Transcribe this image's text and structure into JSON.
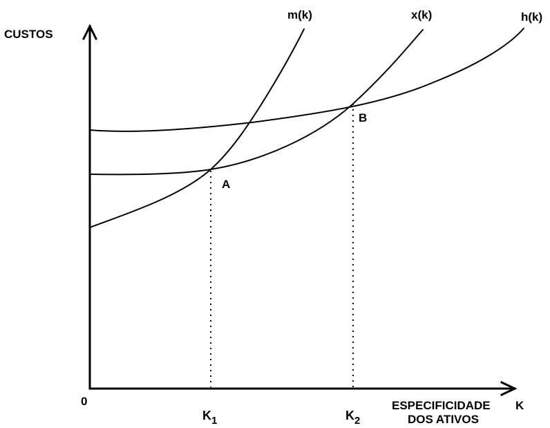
{
  "axes": {
    "y_label": "CUSTOS",
    "x_label_line1": "ESPECIFICIDADE",
    "x_label_line2": "DOS ATIVOS",
    "x_symbol": "K",
    "origin": "0"
  },
  "curves": {
    "m": "m(k)",
    "x": "x(k)",
    "h": "h(k)"
  },
  "points": {
    "A": "A",
    "B": "B"
  },
  "ticks": {
    "k1_letter": "K",
    "k1_sub": "1",
    "k2_letter": "K",
    "k2_sub": "2"
  }
}
